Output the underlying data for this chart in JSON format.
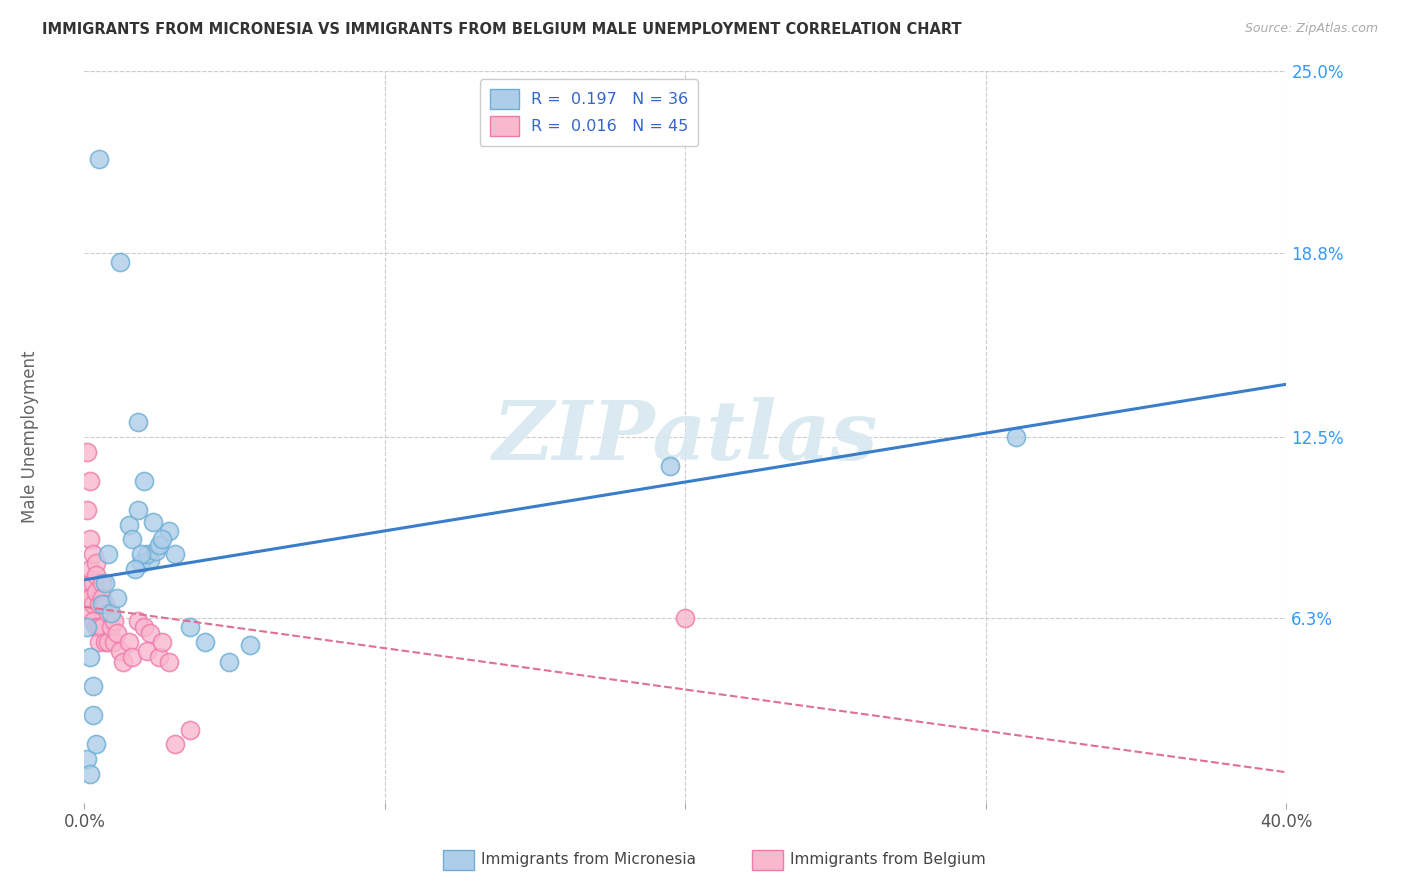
{
  "title": "IMMIGRANTS FROM MICRONESIA VS IMMIGRANTS FROM BELGIUM MALE UNEMPLOYMENT CORRELATION CHART",
  "source": "Source: ZipAtlas.com",
  "ylabel": "Male Unemployment",
  "xlim": [
    0.0,
    0.4
  ],
  "ylim": [
    0.0,
    0.25
  ],
  "yticks": [
    0.063,
    0.125,
    0.188,
    0.25
  ],
  "ytick_labels": [
    "6.3%",
    "12.5%",
    "18.8%",
    "25.0%"
  ],
  "xtick_left_label": "0.0%",
  "xtick_right_label": "40.0%",
  "legend_label_1": "Immigrants from Micronesia",
  "legend_label_2": "Immigrants from Belgium",
  "R1": "0.197",
  "N1": "36",
  "R2": "0.016",
  "N2": "45",
  "color1_face": "#aecde8",
  "color1_edge": "#6baed6",
  "color2_face": "#f9b8ce",
  "color2_edge": "#f07aaa",
  "trend1_color": "#3a7dc9",
  "trend2_color": "#e07090",
  "legend_color_RN": "#3366cc",
  "legend_color_text": "#333333",
  "watermark": "ZIPatlas",
  "micronesia_x": [
    0.005,
    0.012,
    0.001,
    0.002,
    0.003,
    0.018,
    0.008,
    0.007,
    0.006,
    0.015,
    0.016,
    0.018,
    0.019,
    0.022,
    0.021,
    0.024,
    0.02,
    0.019,
    0.017,
    0.023,
    0.028,
    0.03,
    0.195,
    0.035,
    0.04,
    0.048,
    0.001,
    0.002,
    0.004,
    0.009,
    0.011,
    0.31,
    0.025,
    0.026,
    0.055,
    0.003
  ],
  "micronesia_y": [
    0.22,
    0.185,
    0.06,
    0.05,
    0.04,
    0.13,
    0.085,
    0.075,
    0.068,
    0.095,
    0.09,
    0.1,
    0.082,
    0.083,
    0.085,
    0.086,
    0.11,
    0.085,
    0.08,
    0.096,
    0.093,
    0.085,
    0.115,
    0.06,
    0.055,
    0.048,
    0.015,
    0.01,
    0.02,
    0.065,
    0.07,
    0.125,
    0.088,
    0.09,
    0.054,
    0.03
  ],
  "belgium_x": [
    0.001,
    0.001,
    0.001,
    0.001,
    0.001,
    0.002,
    0.002,
    0.002,
    0.002,
    0.003,
    0.003,
    0.003,
    0.003,
    0.004,
    0.004,
    0.004,
    0.004,
    0.005,
    0.005,
    0.005,
    0.006,
    0.006,
    0.006,
    0.007,
    0.007,
    0.008,
    0.008,
    0.009,
    0.01,
    0.01,
    0.011,
    0.012,
    0.013,
    0.015,
    0.016,
    0.018,
    0.02,
    0.021,
    0.022,
    0.025,
    0.026,
    0.028,
    0.03,
    0.035,
    0.2
  ],
  "belgium_y": [
    0.12,
    0.1,
    0.075,
    0.07,
    0.065,
    0.11,
    0.09,
    0.08,
    0.07,
    0.085,
    0.075,
    0.068,
    0.062,
    0.082,
    0.078,
    0.072,
    0.06,
    0.068,
    0.06,
    0.055,
    0.075,
    0.07,
    0.06,
    0.068,
    0.055,
    0.065,
    0.055,
    0.06,
    0.062,
    0.055,
    0.058,
    0.052,
    0.048,
    0.055,
    0.05,
    0.062,
    0.06,
    0.052,
    0.058,
    0.05,
    0.055,
    0.048,
    0.02,
    0.025,
    0.063
  ]
}
